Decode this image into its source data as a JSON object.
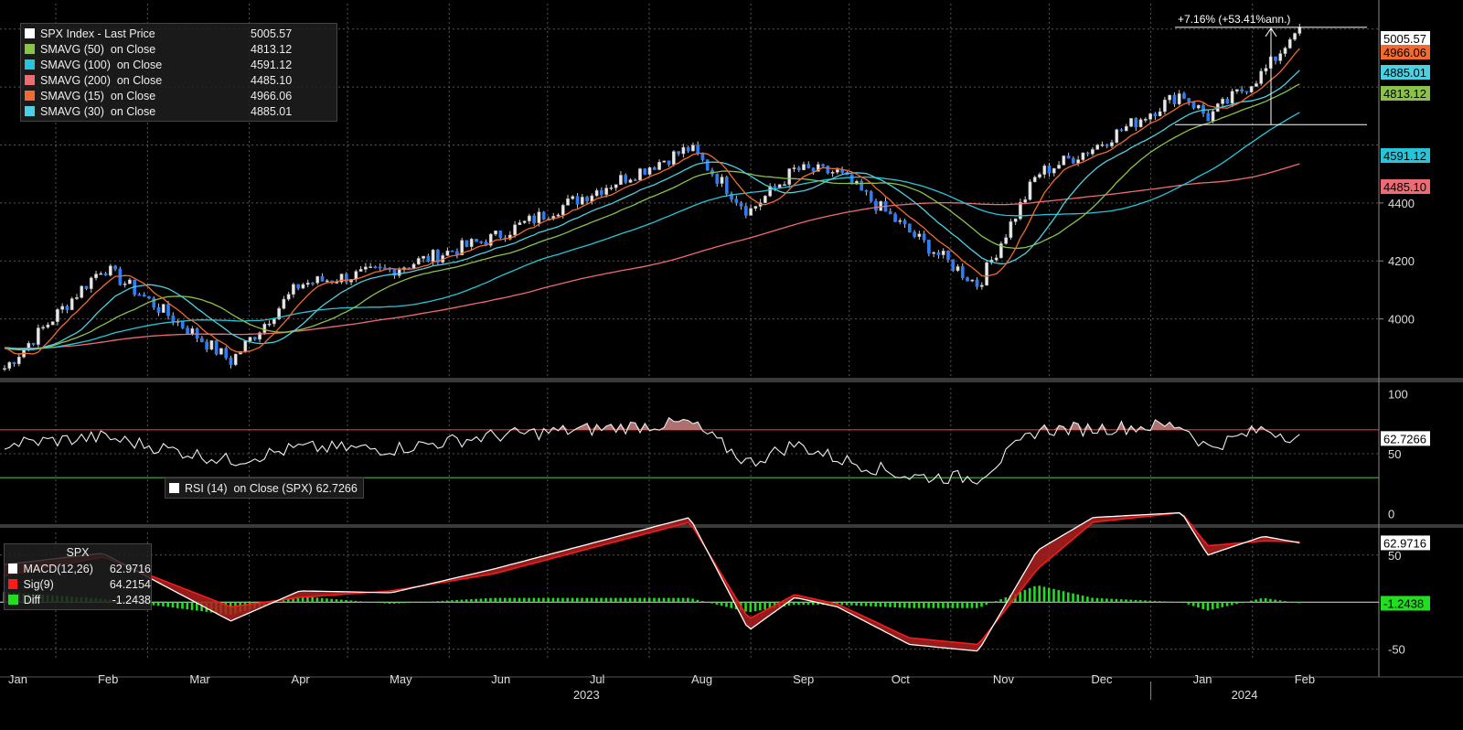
{
  "panels": {
    "price": {
      "legend": [
        {
          "name": "SPX Index - Last Price",
          "value": "5005.57",
          "color": "#ffffff"
        },
        {
          "name": "SMAVG (50)  on Close",
          "value": "4813.12",
          "color": "#8bc34a"
        },
        {
          "name": "SMAVG (100)  on Close",
          "value": "4591.12",
          "color": "#26c6da"
        },
        {
          "name": "SMAVG (200)  on Close",
          "value": "4485.10",
          "color": "#ef6b73"
        },
        {
          "name": "SMAVG (15)  on Close",
          "value": "4966.06",
          "color": "#f26a2e"
        },
        {
          "name": "SMAVG (30)  on Close",
          "value": "4885.01",
          "color": "#4dd0e1"
        }
      ],
      "price_tags": [
        {
          "text": "5005.57",
          "value": 5005.57,
          "bg": "#ffffff",
          "fg": "#000000"
        },
        {
          "text": "4966.06",
          "value": 4966.06,
          "bg": "#f26a2e",
          "fg": "#000000"
        },
        {
          "text": "4885.01",
          "value": 4885.01,
          "bg": "#4dd0e1",
          "fg": "#000000"
        },
        {
          "text": "4813.12",
          "value": 4813.12,
          "bg": "#8bc34a",
          "fg": "#000000"
        },
        {
          "text": "4591.12",
          "value": 4591.12,
          "bg": "#26c6da",
          "fg": "#000000"
        },
        {
          "text": "4485.10",
          "value": 4485.1,
          "bg": "#ef6b73",
          "fg": "#000000"
        }
      ],
      "y_ticks": [
        "4000",
        "4200",
        "4400"
      ],
      "annotation": "+7.16% (+53.41%ann.)"
    },
    "rsi": {
      "legend": {
        "name": "RSI (14)  on Close (SPX)",
        "value": "62.7266"
      },
      "tag": "62.7266",
      "y_ticks": [
        "100",
        "50",
        "0"
      ],
      "overbought": 70,
      "oversold": 30
    },
    "macd": {
      "title": "SPX",
      "legend": [
        {
          "name": "MACD(12,26)",
          "value": "62.9716",
          "color": "#ffffff"
        },
        {
          "name": "Sig(9)",
          "value": "64.2154",
          "color": "#ff1a1a"
        },
        {
          "name": "Diff",
          "value": "-1.2438",
          "color": "#22dd22"
        }
      ],
      "tags": [
        {
          "text": "62.9716",
          "bg": "#ffffff"
        },
        {
          "text": "-1.2438",
          "bg": "#22dd22"
        }
      ],
      "y_ticks": [
        "50",
        "-50"
      ]
    }
  },
  "x_axis": {
    "months": [
      "Jan",
      "Feb",
      "Mar",
      "Apr",
      "May",
      "Jun",
      "Jul",
      "Aug",
      "Sep",
      "Oct",
      "Nov",
      "Dec",
      "Jan",
      "Feb"
    ],
    "years": [
      "2023",
      "2024"
    ]
  },
  "chart_data": [
    {
      "type": "line",
      "title": "SPX Index - Last Price",
      "x": [
        "2023-01-03",
        "2023-02-02",
        "2023-03-13",
        "2023-04-03",
        "2023-05-01",
        "2023-06-01",
        "2023-07-31",
        "2023-08-18",
        "2023-09-01",
        "2023-09-14",
        "2023-10-06",
        "2023-10-27",
        "2023-11-14",
        "2023-12-01",
        "2023-12-28",
        "2024-01-05",
        "2024-01-22",
        "2024-02-02"
      ],
      "series": [
        {
          "name": "SPX Index - Last Price",
          "values": [
            3830,
            4180,
            3855,
            4120,
            4170,
            4280,
            4590,
            4370,
            4515,
            4505,
            4300,
            4117,
            4500,
            4590,
            4780,
            4695,
            4850,
            5005.57
          ]
        }
      ],
      "ylim": [
        3800,
        5100
      ]
    },
    {
      "type": "line",
      "title": "RSI (14) on Close (SPX)",
      "series": [
        {
          "name": "RSI (14)  on Close (SPX)",
          "values": [
            58,
            64,
            44,
            55,
            54,
            65,
            76,
            42,
            58,
            46,
            31,
            30,
            70,
            71,
            74,
            55,
            71,
            62.7266
          ]
        }
      ],
      "ylim": [
        0,
        100
      ]
    },
    {
      "type": "line",
      "title": "SPX",
      "series": [
        {
          "name": "MACD(12,26)",
          "values": [
            40,
            52,
            -20,
            12,
            10,
            35,
            90,
            -30,
            5,
            -5,
            -45,
            -52,
            55,
            90,
            95,
            50,
            70,
            62.9716
          ]
        },
        {
          "name": "Sig(9)",
          "values": [
            28,
            48,
            -5,
            5,
            12,
            30,
            85,
            -18,
            8,
            -2,
            -38,
            -45,
            35,
            85,
            95,
            60,
            65,
            64.2154
          ]
        },
        {
          "name": "Diff",
          "values": [
            12,
            4,
            -15,
            7,
            -2,
            5,
            5,
            -12,
            -3,
            -3,
            -7,
            -7,
            20,
            5,
            0,
            -10,
            5,
            -1.2438
          ]
        }
      ]
    }
  ]
}
